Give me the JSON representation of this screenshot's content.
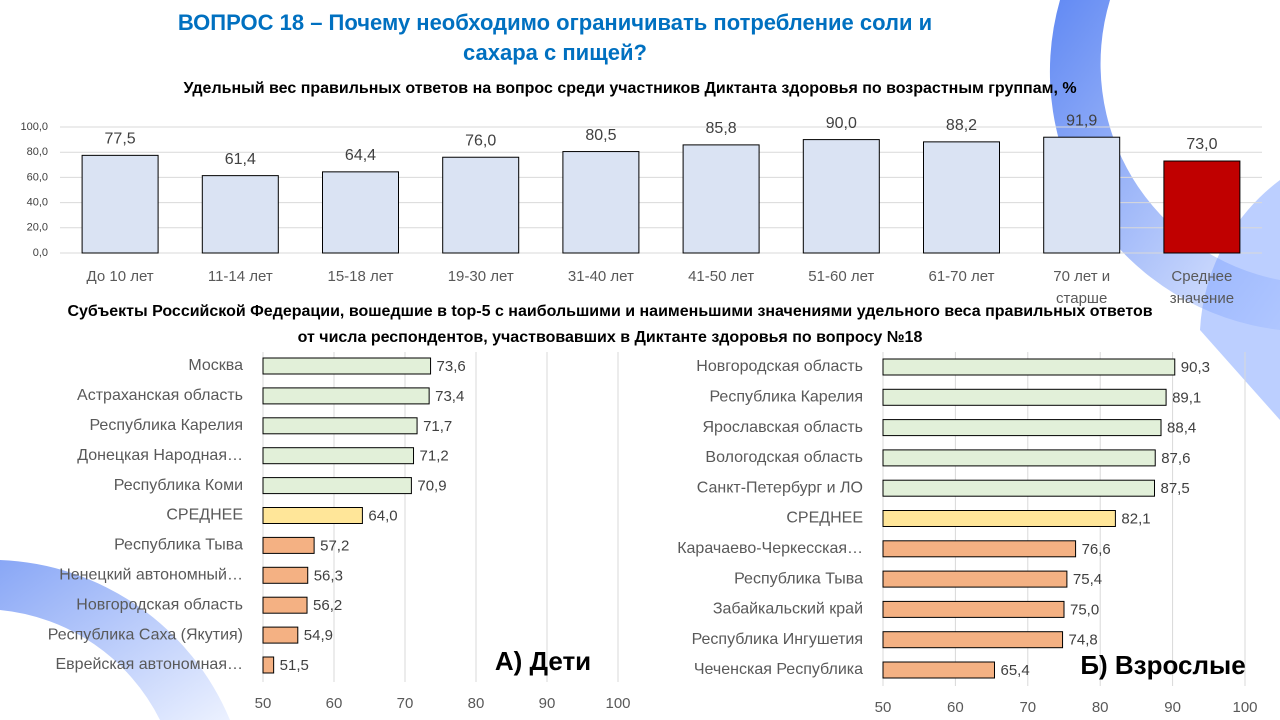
{
  "title": "ВОПРОС 18 – Почему необходимо ограничивать потребление соли и сахара с пищей?",
  "section_title": "Субъекты Российской Федерации, вошедшие в  top-5 с наибольшими и наименьшими значениями удельного веса правильных ответов от числа респондентов,  участвовавших  в Диктанте здоровья  по вопросу №18",
  "chart_data": [
    {
      "type": "bar",
      "title": "Удельный вес правильных ответов на вопрос среди участников  Диктанта  здоровья  по возрастным  группам, %",
      "categories": [
        "До 10 лет",
        "11-14 лет",
        "15-18 лет",
        "19-30 лет",
        "31-40 лет",
        "41-50 лет",
        "51-60 лет",
        "61-70 лет",
        "70 лет и старше",
        "Среднее значение"
      ],
      "values": [
        77.5,
        61.4,
        64.4,
        76.0,
        80.5,
        85.8,
        90.0,
        88.2,
        91.9,
        73.0
      ],
      "value_labels": [
        "77,5",
        "61,4",
        "64,4",
        "76,0",
        "80,5",
        "85,8",
        "90,0",
        "88,2",
        "91,9",
        "73,0"
      ],
      "colors": [
        "#dae3f3",
        "#dae3f3",
        "#dae3f3",
        "#dae3f3",
        "#dae3f3",
        "#dae3f3",
        "#dae3f3",
        "#dae3f3",
        "#dae3f3",
        "#c00000"
      ],
      "ylim": [
        0,
        100
      ],
      "yticks": [
        {
          "value": 0,
          "label": "0,0"
        },
        {
          "value": 20,
          "label": "20,0"
        },
        {
          "value": 40,
          "label": "40,0"
        },
        {
          "value": 60,
          "label": "60,0"
        },
        {
          "value": 80,
          "label": "80,0"
        },
        {
          "value": 100,
          "label": "100,0"
        }
      ],
      "grid": true
    },
    {
      "type": "hbar",
      "annotation": "А) Дети",
      "categories": [
        "Москва",
        "Астраханская область",
        "Республика Карелия",
        "Донецкая Народная…",
        "Республика Коми",
        "СРЕДНЕЕ",
        "Республика Тыва",
        "Ненецкий автономный…",
        "Новгородская область",
        "Республика Саха (Якутия)",
        "Еврейская автономная…"
      ],
      "values": [
        73.6,
        73.4,
        71.7,
        71.2,
        70.9,
        64.0,
        57.2,
        56.3,
        56.2,
        54.9,
        51.5
      ],
      "value_labels": [
        "73,6",
        "73,4",
        "71,7",
        "71,2",
        "70,9",
        "64,0",
        "57,2",
        "56,3",
        "56,2",
        "54,9",
        "51,5"
      ],
      "colors": [
        "#e2f0d9",
        "#e2f0d9",
        "#e2f0d9",
        "#e2f0d9",
        "#e2f0d9",
        "#ffe699",
        "#f4b183",
        "#f4b183",
        "#f4b183",
        "#f4b183",
        "#f4b183"
      ],
      "xlim": [
        50,
        100
      ],
      "xticks": [
        50,
        60,
        70,
        80,
        90,
        100
      ],
      "grid": true
    },
    {
      "type": "hbar",
      "annotation": "Б) Взрослые",
      "categories": [
        "Новгородская область",
        "Республика Карелия",
        "Ярославская область",
        "Вологодская область",
        "Санкт-Петербург  и ЛО",
        "СРЕДНЕЕ",
        "Карачаево-Черкесская…",
        "Республика Тыва",
        "Забайкальский  край",
        "Республика Ингушетия",
        "Чеченская Республика"
      ],
      "values": [
        90.3,
        89.1,
        88.4,
        87.6,
        87.5,
        82.1,
        76.6,
        75.4,
        75.0,
        74.8,
        65.4
      ],
      "value_labels": [
        "90,3",
        "89,1",
        "88,4",
        "87,6",
        "87,5",
        "82,1",
        "76,6",
        "75,4",
        "75,0",
        "74,8",
        "65,4"
      ],
      "colors": [
        "#e2f0d9",
        "#e2f0d9",
        "#e2f0d9",
        "#e2f0d9",
        "#e2f0d9",
        "#ffe699",
        "#f4b183",
        "#f4b183",
        "#f4b183",
        "#f4b183",
        "#f4b183"
      ],
      "xlim": [
        50,
        100
      ],
      "xticks": [
        50,
        60,
        70,
        80,
        90,
        100
      ],
      "grid": true
    }
  ]
}
